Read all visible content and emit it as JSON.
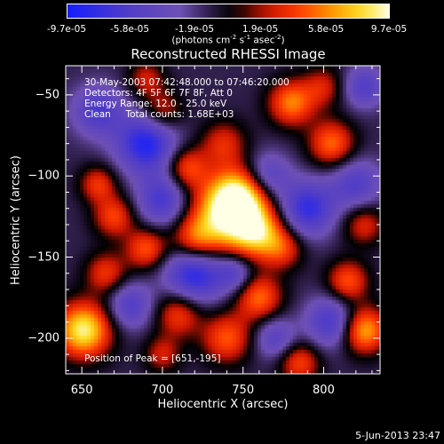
{
  "colorbar": {
    "tick_labels": [
      "-9.7e-05",
      "-5.8e-05",
      "-1.9e-05",
      "1.9e-05",
      "5.8e-05",
      "9.7e-05"
    ],
    "range": [
      -9.7e-05,
      9.7e-05
    ],
    "units_main": "(photons cm",
    "units_exp1": "-2",
    "units_mid": " s",
    "units_exp2": "-1",
    "units_mid2": " asec",
    "units_exp3": "-2",
    "units_end": ")"
  },
  "chart_data": {
    "type": "heatmap",
    "title": "Reconstructed RHESSI Image",
    "xlabel": "Heliocentric X (arcsec)",
    "ylabel": "Heliocentric Y (arcsec)",
    "xlim": [
      640,
      835
    ],
    "ylim": [
      -222,
      -32
    ],
    "xticks": [
      650,
      700,
      750,
      800
    ],
    "yticks": [
      -50,
      -100,
      -150,
      -200
    ],
    "xtick_labels": [
      "650",
      "700",
      "750",
      "800"
    ],
    "ytick_labels": [
      "−50",
      "−100",
      "−150",
      "−200"
    ],
    "peak_position": [
      651,
      -195
    ],
    "blobs": [
      {
        "x": 740,
        "y": -125,
        "amp": 1.0,
        "r": 16
      },
      {
        "x": 748,
        "y": -112,
        "amp": 0.8,
        "r": 12
      },
      {
        "x": 760,
        "y": -135,
        "amp": 0.7,
        "r": 11
      },
      {
        "x": 720,
        "y": -140,
        "amp": 0.55,
        "r": 10
      },
      {
        "x": 715,
        "y": -95,
        "amp": 0.55,
        "r": 9
      },
      {
        "x": 738,
        "y": -80,
        "amp": 0.45,
        "r": 10
      },
      {
        "x": 775,
        "y": -145,
        "amp": 0.45,
        "r": 9
      },
      {
        "x": 690,
        "y": -145,
        "amp": 0.6,
        "r": 9
      },
      {
        "x": 660,
        "y": -105,
        "amp": 0.5,
        "r": 8
      },
      {
        "x": 670,
        "y": -125,
        "amp": 0.55,
        "r": 9
      },
      {
        "x": 700,
        "y": -60,
        "amp": 0.45,
        "r": 9
      },
      {
        "x": 690,
        "y": -40,
        "amp": 0.4,
        "r": 8
      },
      {
        "x": 780,
        "y": -55,
        "amp": 0.7,
        "r": 10
      },
      {
        "x": 805,
        "y": -80,
        "amp": 0.65,
        "r": 10
      },
      {
        "x": 825,
        "y": -130,
        "amp": 0.45,
        "r": 9
      },
      {
        "x": 800,
        "y": -45,
        "amp": 0.4,
        "r": 9
      },
      {
        "x": 651,
        "y": -195,
        "amp": 1.05,
        "r": 12
      },
      {
        "x": 665,
        "y": -160,
        "amp": 0.5,
        "r": 9
      },
      {
        "x": 710,
        "y": -185,
        "amp": 0.55,
        "r": 10
      },
      {
        "x": 740,
        "y": -200,
        "amp": 0.6,
        "r": 11
      },
      {
        "x": 760,
        "y": -175,
        "amp": 0.65,
        "r": 10
      },
      {
        "x": 815,
        "y": -165,
        "amp": 0.6,
        "r": 9
      },
      {
        "x": 825,
        "y": -195,
        "amp": 0.85,
        "r": 10
      },
      {
        "x": 785,
        "y": -215,
        "amp": 0.55,
        "r": 9
      },
      {
        "x": 700,
        "y": -210,
        "amp": 0.4,
        "r": 8
      },
      {
        "x": 720,
        "y": -160,
        "amp": -0.8,
        "r": 13
      },
      {
        "x": 700,
        "y": -115,
        "amp": -0.6,
        "r": 11
      },
      {
        "x": 690,
        "y": -80,
        "amp": -0.8,
        "r": 13
      },
      {
        "x": 765,
        "y": -100,
        "amp": -0.5,
        "r": 10
      },
      {
        "x": 790,
        "y": -120,
        "amp": -0.7,
        "r": 12
      },
      {
        "x": 805,
        "y": -190,
        "amp": -0.6,
        "r": 11
      },
      {
        "x": 770,
        "y": -200,
        "amp": -0.45,
        "r": 9
      },
      {
        "x": 660,
        "y": -60,
        "amp": -0.55,
        "r": 11
      },
      {
        "x": 820,
        "y": -105,
        "amp": -0.5,
        "r": 11
      },
      {
        "x": 680,
        "y": -180,
        "amp": -0.5,
        "r": 10
      },
      {
        "x": 745,
        "y": -160,
        "amp": -0.45,
        "r": 8
      },
      {
        "x": 825,
        "y": -45,
        "amp": -0.5,
        "r": 9
      }
    ]
  },
  "info": {
    "time_range": "30-May-2003 07:42:48.000 to 07:46:20.000",
    "detectors": "Detectors: 4F 5F 6F 7F 8F, Att 0",
    "energy": "Energy Range: 12.0 - 25.0 keV",
    "clean": "Clean     Total counts: 1.68E+03",
    "peak": "Position of Peak = [651,-195]"
  },
  "timestamp": "5-Jun-2013 23:47"
}
